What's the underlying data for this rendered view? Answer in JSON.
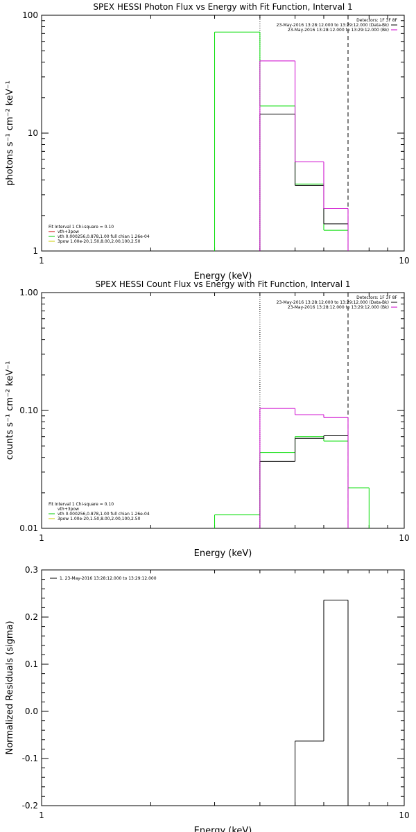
{
  "chart_data": [
    {
      "type": "histogram",
      "title": "SPEX HESSI Photon Flux vs Energy with Fit Function, Interval 1",
      "xlabel": "Energy (keV)",
      "ylabel": "photons s⁻¹ cm⁻² keV⁻¹",
      "xscale": "log",
      "yscale": "log",
      "xlim": [
        1,
        10
      ],
      "ylim": [
        1,
        100
      ],
      "xticks": [
        {
          "v": 1,
          "label": "1"
        },
        {
          "v": 10,
          "label": "10"
        }
      ],
      "yticks": [
        {
          "v": 1,
          "label": "1"
        },
        {
          "v": 10,
          "label": "10"
        },
        {
          "v": 100,
          "label": "100"
        }
      ],
      "vlines": [
        {
          "x": 4,
          "style": "dotted"
        },
        {
          "x": 7,
          "style": "dashed"
        }
      ],
      "detectors": "Detectors: 1F 3F 8F",
      "data_legend": [
        {
          "text": "23-May-2016 13:28:12.000 to 13:29:12.000 (Data-Bk)",
          "color": "#000000"
        },
        {
          "text": "23-May-2016 13:28:12.000 to 13:29:12.000 (Bk)",
          "color": "#cc00cc"
        }
      ],
      "fit_legend": [
        {
          "text": "Fit Interval  1    Chi-square = 0.10",
          "color": ""
        },
        {
          "text": "vth+3pow",
          "color": "#cc0000"
        },
        {
          "text": "vth 0.000256,0.878,1.00  full chian 1.26e-04",
          "color": "#00cc00"
        },
        {
          "text": "3pow 1.00e-20,1.50,8.00,2.00,100,2.50",
          "color": "#cccc00"
        }
      ],
      "edges": [
        3,
        4,
        5,
        6,
        7
      ],
      "series": [
        {
          "name": "",
          "color": "#00dd00",
          "values": [
            72,
            17,
            3.7,
            1.5
          ]
        },
        {
          "name": "",
          "color": "#000000",
          "values": [
            null,
            14.5,
            3.6,
            1.7
          ]
        },
        {
          "name": "",
          "color": "#cc00cc",
          "values": [
            null,
            41,
            5.7,
            2.3
          ]
        }
      ]
    },
    {
      "type": "histogram",
      "title": "SPEX HESSI Count Flux vs Energy with Fit Function, Interval 1",
      "xlabel": "Energy (keV)",
      "ylabel": "counts s⁻¹ cm⁻² keV⁻¹",
      "xscale": "log",
      "yscale": "log",
      "xlim": [
        1,
        10
      ],
      "ylim": [
        0.01,
        1
      ],
      "xticks": [
        {
          "v": 1,
          "label": "1"
        },
        {
          "v": 10,
          "label": "10"
        }
      ],
      "yticks": [
        {
          "v": 0.01,
          "label": "0.01"
        },
        {
          "v": 0.1,
          "label": "0.10"
        },
        {
          "v": 1,
          "label": "1.00"
        }
      ],
      "vlines": [
        {
          "x": 4,
          "style": "dotted"
        },
        {
          "x": 7,
          "style": "dashed"
        }
      ],
      "detectors": "Detectors: 1F 3F 8F",
      "data_legend": [
        {
          "text": "23-May-2016 13:28:12.000 to 13:29:12.000 (Data-Bk)",
          "color": "#000000"
        },
        {
          "text": "23-May-2016 13:28:12.000 to 13:29:12.000 (Bk)",
          "color": "#cc00cc"
        }
      ],
      "fit_legend": [
        {
          "text": "Fit Interval  1    Chi-square = 0.10",
          "color": ""
        },
        {
          "text": "vth+3pow",
          "color": ""
        },
        {
          "text": "vth 0.000256,0.878,1.00  full chian 1.26e-04",
          "color": "#00cc00"
        },
        {
          "text": "3pow 1.00e-20,1.50,8.00,2.00,100,2.50",
          "color": "#cccc00"
        }
      ],
      "edges": [
        3,
        4,
        5,
        6,
        7,
        8
      ],
      "series": [
        {
          "name": "",
          "color": "#00dd00",
          "values": [
            0.013,
            0.044,
            0.06,
            0.055,
            0.022
          ]
        },
        {
          "name": "",
          "color": "#000000",
          "values": [
            null,
            0.037,
            0.058,
            0.061,
            null
          ]
        },
        {
          "name": "",
          "color": "#cc00cc",
          "values": [
            null,
            0.104,
            0.092,
            0.087,
            null
          ]
        }
      ]
    },
    {
      "type": "histogram",
      "title": "",
      "xlabel": "Energy (keV)",
      "ylabel": "Normalized Residuals (sigma)",
      "xscale": "log",
      "yscale": "linear",
      "xlim": [
        1,
        10
      ],
      "ylim": [
        -0.2,
        0.3
      ],
      "xticks": [
        {
          "v": 1,
          "label": "1"
        },
        {
          "v": 10,
          "label": "10"
        }
      ],
      "yticks": [
        {
          "v": -0.2,
          "label": "-0.2"
        },
        {
          "v": -0.1,
          "label": "-0.1"
        },
        {
          "v": 0,
          "label": "0.0"
        },
        {
          "v": 0.1,
          "label": "0.1"
        },
        {
          "v": 0.2,
          "label": "0.2"
        },
        {
          "v": 0.3,
          "label": "0.3"
        }
      ],
      "vlines": [],
      "detectors": "",
      "data_legend": [],
      "fit_legend": [],
      "residual_legend": "1. 23-May-2016 13:28:12.000 to 13:29:12.000",
      "edges": [
        5,
        6,
        7
      ],
      "series": [
        {
          "name": "",
          "color": "#000000",
          "values": [
            -0.063,
            0.236
          ]
        }
      ]
    }
  ]
}
